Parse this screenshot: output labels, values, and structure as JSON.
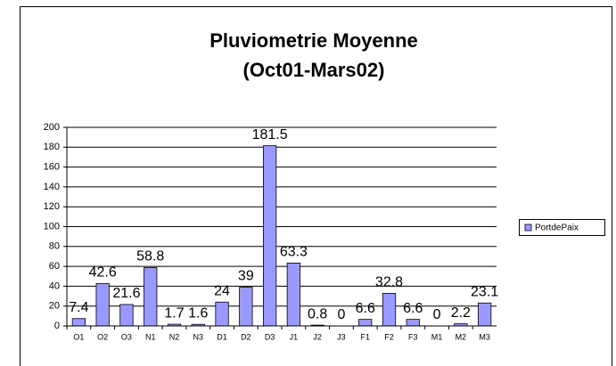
{
  "chart_data": {
    "type": "bar",
    "title": [
      "Pluviometrie Moyenne",
      "(Oct01-Mars02)"
    ],
    "categories": [
      "O1",
      "O2",
      "O3",
      "N1",
      "N2",
      "N3",
      "D1",
      "D2",
      "D3",
      "J1",
      "J2",
      "J3",
      "F1",
      "F2",
      "F3",
      "M1",
      "M2",
      "M3"
    ],
    "series": [
      {
        "name": "PortdePaix",
        "color": "#9999ff",
        "values": [
          7.4,
          42.6,
          21.6,
          58.8,
          1.7,
          1.6,
          24,
          39,
          181.5,
          63.3,
          0.8,
          0,
          6.6,
          32.8,
          6.6,
          0,
          2.2,
          23.1
        ]
      }
    ],
    "ylim": [
      0,
      200
    ],
    "yticks": [
      0,
      20,
      40,
      60,
      80,
      100,
      120,
      140,
      160,
      180,
      200
    ],
    "grid": true,
    "legend": "right"
  }
}
